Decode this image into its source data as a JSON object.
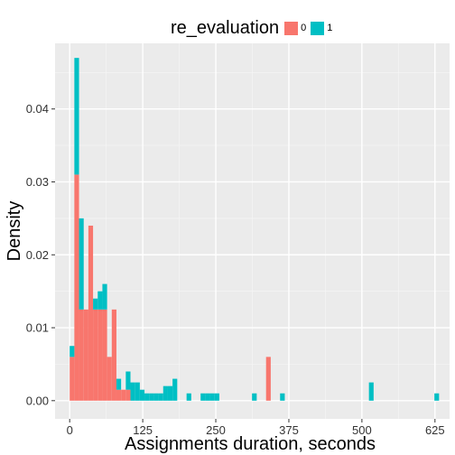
{
  "chart_data": {
    "type": "histogram",
    "title": "",
    "xlabel": "Assignments duration, seconds",
    "ylabel": "Density",
    "xlim": [
      -25,
      650
    ],
    "ylim": [
      -0.0025,
      0.049
    ],
    "x_ticks": [
      0,
      125,
      250,
      375,
      500,
      625
    ],
    "y_ticks": [
      0.0,
      0.01,
      0.02,
      0.03,
      0.04
    ],
    "y_tick_labels": [
      "0.00",
      "0.01",
      "0.02",
      "0.03",
      "0.04"
    ],
    "bin_width": 8,
    "stacked": true,
    "grid": true,
    "legend": {
      "title": "re_evaluation",
      "position": "top",
      "entries": [
        {
          "label": "0",
          "color": "#F8766D"
        },
        {
          "label": "1",
          "color": "#00BFC4"
        }
      ]
    },
    "series": [
      {
        "name": "0",
        "color": "#F8766D",
        "bins": [
          {
            "x0": 0,
            "y": 0.006
          },
          {
            "x0": 8,
            "y": 0.031
          },
          {
            "x0": 16,
            "y": 0.0125
          },
          {
            "x0": 24,
            "y": 0.0125
          },
          {
            "x0": 32,
            "y": 0.024
          },
          {
            "x0": 40,
            "y": 0.0125
          },
          {
            "x0": 48,
            "y": 0.0125
          },
          {
            "x0": 56,
            "y": 0.0125
          },
          {
            "x0": 64,
            "y": 0.006
          },
          {
            "x0": 72,
            "y": 0.0125
          },
          {
            "x0": 80,
            "y": 0.0015
          },
          {
            "x0": 88,
            "y": 0.0015
          },
          {
            "x0": 96,
            "y": 0.0015
          },
          {
            "x0": 336,
            "y": 0.006
          }
        ]
      },
      {
        "name": "1",
        "color": "#00BFC4",
        "bins": [
          {
            "x0": 0,
            "y": 0.0015
          },
          {
            "x0": 8,
            "y": 0.016
          },
          {
            "x0": 16,
            "y": 0.0125
          },
          {
            "x0": 24,
            "y": 0.0
          },
          {
            "x0": 32,
            "y": 0.0
          },
          {
            "x0": 40,
            "y": 0.0015
          },
          {
            "x0": 48,
            "y": 0.0025
          },
          {
            "x0": 56,
            "y": 0.0035
          },
          {
            "x0": 64,
            "y": 0.0
          },
          {
            "x0": 72,
            "y": 0.0
          },
          {
            "x0": 80,
            "y": 0.0015
          },
          {
            "x0": 88,
            "y": 0.0
          },
          {
            "x0": 96,
            "y": 0.0025
          },
          {
            "x0": 104,
            "y": 0.0025
          },
          {
            "x0": 112,
            "y": 0.0025
          },
          {
            "x0": 120,
            "y": 0.0015
          },
          {
            "x0": 128,
            "y": 0.001
          },
          {
            "x0": 136,
            "y": 0.001
          },
          {
            "x0": 144,
            "y": 0.001
          },
          {
            "x0": 152,
            "y": 0.001
          },
          {
            "x0": 160,
            "y": 0.002
          },
          {
            "x0": 168,
            "y": 0.002
          },
          {
            "x0": 176,
            "y": 0.003
          },
          {
            "x0": 200,
            "y": 0.001
          },
          {
            "x0": 224,
            "y": 0.001
          },
          {
            "x0": 232,
            "y": 0.001
          },
          {
            "x0": 240,
            "y": 0.001
          },
          {
            "x0": 248,
            "y": 0.001
          },
          {
            "x0": 312,
            "y": 0.001
          },
          {
            "x0": 360,
            "y": 0.001
          },
          {
            "x0": 512,
            "y": 0.0025
          },
          {
            "x0": 624,
            "y": 0.001
          }
        ]
      }
    ]
  }
}
